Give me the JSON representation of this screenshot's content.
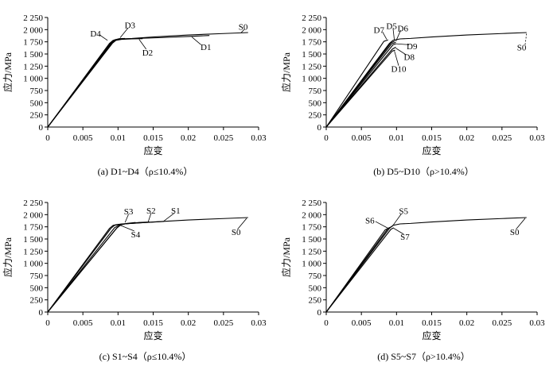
{
  "chart_data": [
    {
      "type": "line",
      "panel": "a",
      "caption": "(a) D1~D4（ρ≤10.4%）",
      "xlabel": "应变",
      "ylabel": "应力/MPa",
      "xlim": [
        0,
        0.03
      ],
      "ylim": [
        0,
        2250
      ],
      "xticks": [
        0,
        0.005,
        0.01,
        0.015,
        0.02,
        0.025,
        0.03
      ],
      "xtick_labels": [
        "0",
        "0.005",
        "0.01",
        "0.015",
        "0.02",
        "0.025",
        "0.03"
      ],
      "yticks": [
        0,
        250,
        500,
        750,
        1000,
        1250,
        1500,
        1750,
        2000,
        2250
      ],
      "ytick_labels": [
        "0",
        "250",
        "500",
        "750",
        "1 000",
        "1 250",
        "1 500",
        "1 750",
        "2 000",
        "2 250"
      ],
      "series": [
        {
          "name": "S0",
          "x": [
            0,
            0.009,
            0.0095,
            0.0105,
            0.012,
            0.015,
            0.02,
            0.025,
            0.0285
          ],
          "y": [
            0,
            1720,
            1780,
            1810,
            1820,
            1850,
            1890,
            1920,
            1940
          ]
        },
        {
          "name": "D1",
          "x": [
            0,
            0.0091,
            0.0096,
            0.0105,
            0.015,
            0.02,
            0.023
          ],
          "y": [
            0,
            1720,
            1780,
            1810,
            1830,
            1860,
            1880
          ]
        },
        {
          "name": "D2",
          "x": [
            0,
            0.0092,
            0.0097,
            0.0105,
            0.012,
            0.0135
          ],
          "y": [
            0,
            1720,
            1780,
            1800,
            1810,
            1815
          ]
        },
        {
          "name": "D3",
          "x": [
            0,
            0.009,
            0.0095,
            0.0102,
            0.011
          ],
          "y": [
            0,
            1730,
            1790,
            1815,
            1820
          ]
        },
        {
          "name": "D4",
          "x": [
            0,
            0.0088,
            0.0093,
            0.0098
          ],
          "y": [
            0,
            1720,
            1780,
            1790
          ]
        }
      ],
      "annotations": [
        {
          "text": "D3",
          "x": 0.0117,
          "y": 2095
        },
        {
          "text": "D4",
          "x": 0.0068,
          "y": 1925
        },
        {
          "text": "D2",
          "x": 0.0142,
          "y": 1530
        },
        {
          "text": "D1",
          "x": 0.0225,
          "y": 1645
        },
        {
          "text": "S0",
          "x": 0.0278,
          "y": 2060
        }
      ]
    },
    {
      "type": "line",
      "panel": "b",
      "caption": "(b) D5~D10（ρ>10.4%）",
      "xlabel": "应变",
      "ylabel": "应力/MPa",
      "xlim": [
        0,
        0.03
      ],
      "ylim": [
        0,
        2250
      ],
      "xticks": [
        0,
        0.005,
        0.01,
        0.015,
        0.02,
        0.025,
        0.03
      ],
      "xtick_labels": [
        "0",
        "0.005",
        "0.01",
        "0.015",
        "0.02",
        "0.025",
        "0.03"
      ],
      "yticks": [
        0,
        250,
        500,
        750,
        1000,
        1250,
        1500,
        1750,
        2000,
        2250
      ],
      "ytick_labels": [
        "0",
        "250",
        "500",
        "750",
        "1 000",
        "1 250",
        "1 500",
        "1 750",
        "2 000",
        "2 250"
      ],
      "series": [
        {
          "name": "S0",
          "x": [
            0,
            0.009,
            0.0095,
            0.0105,
            0.012,
            0.015,
            0.02,
            0.025,
            0.0285
          ],
          "y": [
            0,
            1720,
            1780,
            1810,
            1820,
            1850,
            1890,
            1920,
            1940
          ]
        },
        {
          "name": "D5",
          "x": [
            0,
            0.0092,
            0.0097
          ],
          "y": [
            0,
            1730,
            1760
          ]
        },
        {
          "name": "D6",
          "x": [
            0,
            0.0093,
            0.0099
          ],
          "y": [
            0,
            1710,
            1740
          ]
        },
        {
          "name": "D7",
          "x": [
            0,
            0.0082,
            0.0088
          ],
          "y": [
            0,
            1760,
            1790
          ]
        },
        {
          "name": "D8",
          "x": [
            0,
            0.0094,
            0.0099
          ],
          "y": [
            0,
            1600,
            1640
          ]
        },
        {
          "name": "D9",
          "x": [
            0,
            0.0095,
            0.0099
          ],
          "y": [
            0,
            1690,
            1710
          ]
        },
        {
          "name": "D10",
          "x": [
            0,
            0.0094,
            0.0098
          ],
          "y": [
            0,
            1560,
            1580
          ]
        }
      ],
      "annotations": [
        {
          "text": "D7",
          "x": 0.0075,
          "y": 2000
        },
        {
          "text": "D5",
          "x": 0.0093,
          "y": 2080
        },
        {
          "text": "D6",
          "x": 0.0109,
          "y": 2030
        },
        {
          "text": "D9",
          "x": 0.0122,
          "y": 1660
        },
        {
          "text": "D8",
          "x": 0.0118,
          "y": 1440
        },
        {
          "text": "D10",
          "x": 0.0103,
          "y": 1200
        },
        {
          "text": "S0",
          "x": 0.0278,
          "y": 1640
        }
      ]
    },
    {
      "type": "line",
      "panel": "c",
      "caption": "(c) S1~S4（ρ≤10.4%）",
      "xlabel": "应变",
      "ylabel": "应力/MPa",
      "xlim": [
        0,
        0.03
      ],
      "ylim": [
        0,
        2250
      ],
      "xticks": [
        0,
        0.005,
        0.01,
        0.015,
        0.02,
        0.025,
        0.03
      ],
      "xtick_labels": [
        "0",
        "0.005",
        "0.01",
        "0.015",
        "0.02",
        "0.025",
        "0.03"
      ],
      "yticks": [
        0,
        250,
        500,
        750,
        1000,
        1250,
        1500,
        1750,
        2000,
        2250
      ],
      "ytick_labels": [
        "0",
        "250",
        "500",
        "750",
        "1 000",
        "1 250",
        "1 500",
        "1 750",
        "2 000",
        "2 250"
      ],
      "series": [
        {
          "name": "S0",
          "x": [
            0,
            0.009,
            0.0095,
            0.0105,
            0.012,
            0.015,
            0.02,
            0.025,
            0.0285
          ],
          "y": [
            0,
            1720,
            1780,
            1810,
            1820,
            1850,
            1890,
            1920,
            1940
          ]
        },
        {
          "name": "S1",
          "x": [
            0,
            0.0095,
            0.0102,
            0.011,
            0.013,
            0.0165
          ],
          "y": [
            0,
            1730,
            1790,
            1810,
            1830,
            1860
          ]
        },
        {
          "name": "S2",
          "x": [
            0,
            0.0098,
            0.0104,
            0.011,
            0.013,
            0.0145
          ],
          "y": [
            0,
            1720,
            1790,
            1810,
            1840,
            1850
          ]
        },
        {
          "name": "S3",
          "x": [
            0,
            0.0099,
            0.0105,
            0.0112,
            0.0125
          ],
          "y": [
            0,
            1740,
            1800,
            1820,
            1840
          ]
        },
        {
          "name": "S4",
          "x": [
            0,
            0.0088,
            0.0093,
            0.01,
            0.011
          ],
          "y": [
            0,
            1720,
            1780,
            1800,
            1810
          ]
        }
      ],
      "annotations": [
        {
          "text": "S3",
          "x": 0.0115,
          "y": 2070
        },
        {
          "text": "S2",
          "x": 0.0147,
          "y": 2090
        },
        {
          "text": "S1",
          "x": 0.0182,
          "y": 2090
        },
        {
          "text": "S4",
          "x": 0.0125,
          "y": 1600
        },
        {
          "text": "S0",
          "x": 0.0268,
          "y": 1650
        }
      ]
    },
    {
      "type": "line",
      "panel": "d",
      "caption": "(d) S5~S7（ρ>10.4%）",
      "xlabel": "应变",
      "ylabel": "应力/MPa",
      "xlim": [
        0,
        0.03
      ],
      "ylim": [
        0,
        2250
      ],
      "xticks": [
        0,
        0.005,
        0.01,
        0.015,
        0.02,
        0.025,
        0.03
      ],
      "xtick_labels": [
        "0",
        "0.005",
        "0.01",
        "0.015",
        "0.02",
        "0.025",
        "0.03"
      ],
      "yticks": [
        0,
        250,
        500,
        750,
        1000,
        1250,
        1500,
        1750,
        2000,
        2250
      ],
      "ytick_labels": [
        "0",
        "250",
        "500",
        "750",
        "1 000",
        "1 250",
        "1 500",
        "1 750",
        "2 000",
        "2 250"
      ],
      "series": [
        {
          "name": "S0",
          "x": [
            0,
            0.009,
            0.0095,
            0.0105,
            0.012,
            0.015,
            0.02,
            0.025,
            0.0285
          ],
          "y": [
            0,
            1720,
            1780,
            1810,
            1820,
            1850,
            1890,
            1920,
            1940
          ]
        },
        {
          "name": "S5",
          "x": [
            0,
            0.0088,
            0.0094
          ],
          "y": [
            0,
            1720,
            1760
          ]
        },
        {
          "name": "S6",
          "x": [
            0,
            0.0084,
            0.009
          ],
          "y": [
            0,
            1690,
            1730
          ]
        },
        {
          "name": "S7",
          "x": [
            0,
            0.0092,
            0.0096
          ],
          "y": [
            0,
            1700,
            1730
          ]
        }
      ],
      "annotations": [
        {
          "text": "S5",
          "x": 0.011,
          "y": 2080
        },
        {
          "text": "S6",
          "x": 0.0062,
          "y": 1880
        },
        {
          "text": "S7",
          "x": 0.0112,
          "y": 1550
        },
        {
          "text": "S0",
          "x": 0.0268,
          "y": 1650
        }
      ]
    }
  ]
}
